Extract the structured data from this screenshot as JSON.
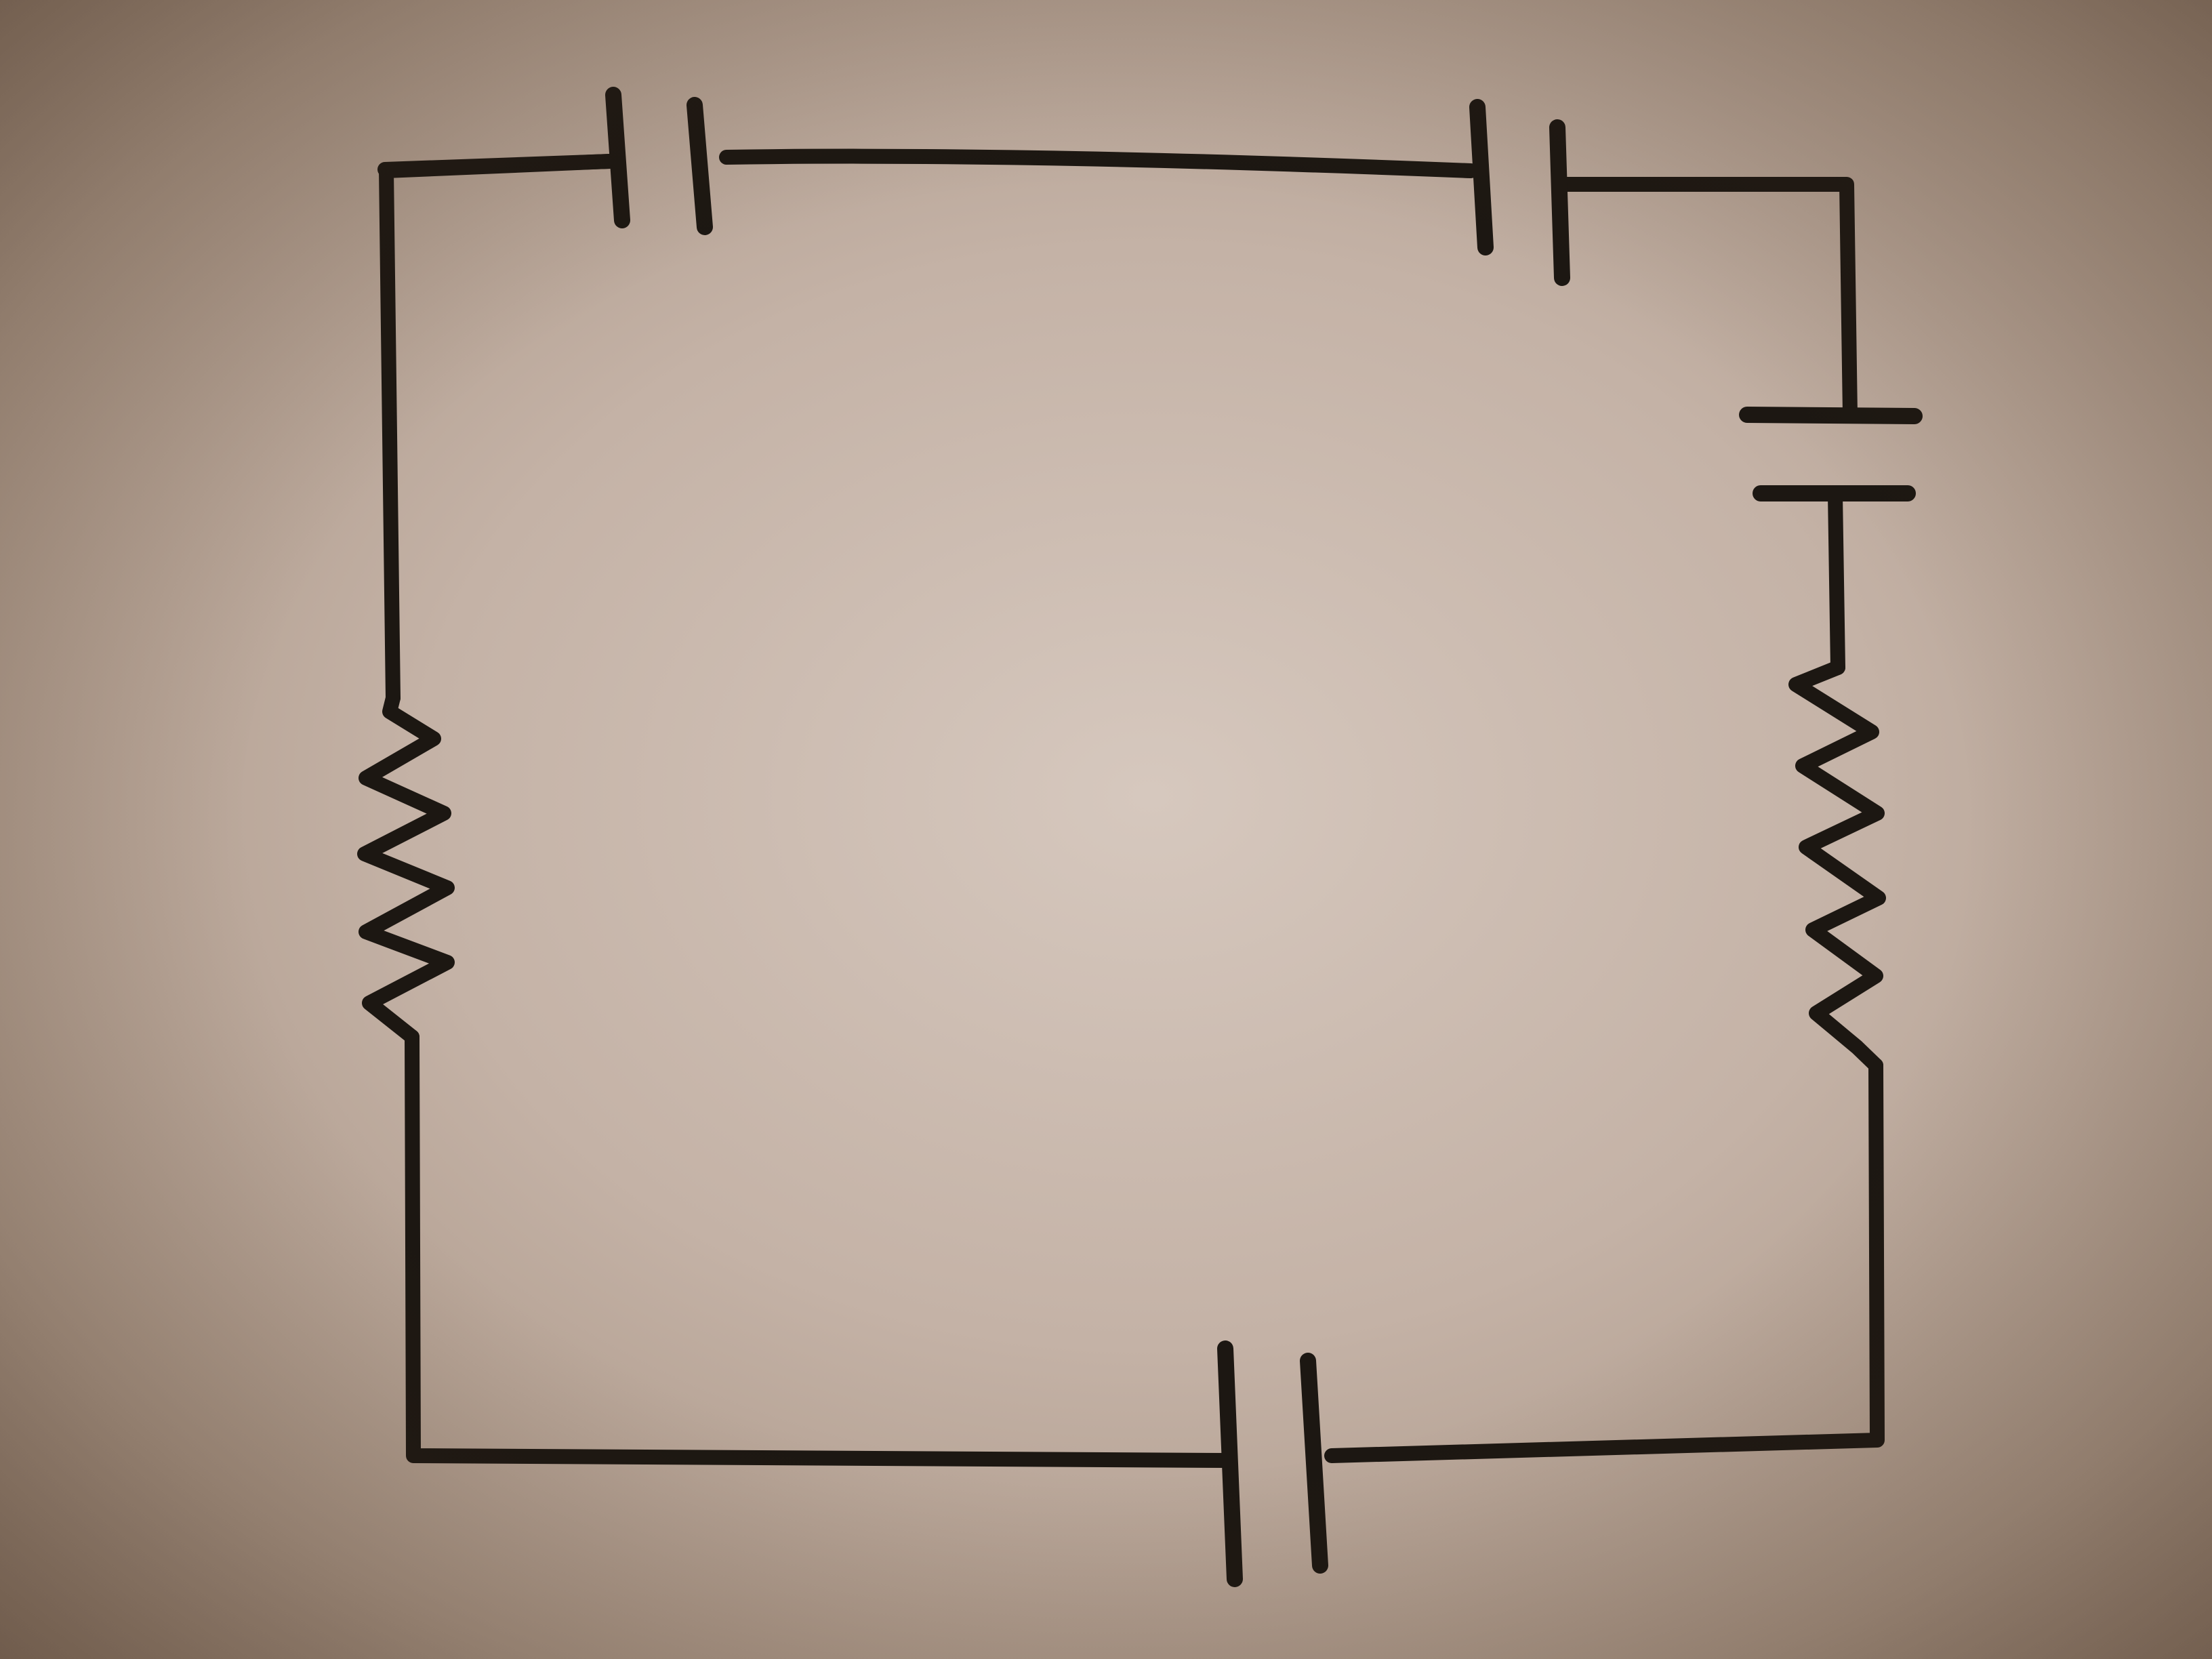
{
  "diagram": {
    "kind": "hand-drawn series circuit",
    "medium": "ink on paper",
    "components": {
      "capacitors": 4,
      "resistors": 2
    },
    "colors": {
      "ink": "#1c1712",
      "paper": "#c8b6aa"
    }
  }
}
